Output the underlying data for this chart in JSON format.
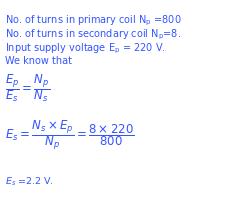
{
  "background_color": "#ffffff",
  "text_color": "#3355ff",
  "fig_width": 2.44,
  "fig_height": 2.0,
  "dpi": 100,
  "fontsize": 7.0,
  "fontsize_math": 8.5,
  "fontsize_last": 6.8
}
